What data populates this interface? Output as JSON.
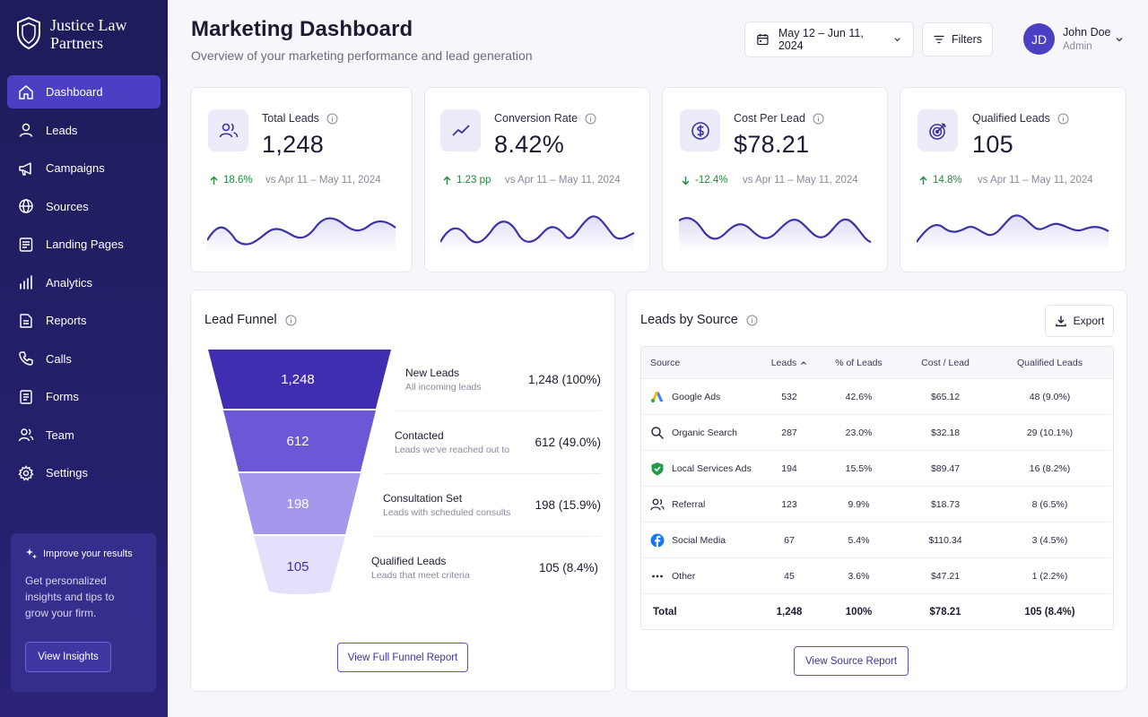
{
  "brand": {
    "name_line1": "Justice Law",
    "name_line2": "Partners"
  },
  "sidebar": {
    "items": [
      {
        "label": "Dashboard",
        "icon": "home-icon"
      },
      {
        "label": "Leads",
        "icon": "user-icon"
      },
      {
        "label": "Campaigns",
        "icon": "megaphone-icon"
      },
      {
        "label": "Sources",
        "icon": "globe-icon"
      },
      {
        "label": "Landing Pages",
        "icon": "page-icon"
      },
      {
        "label": "Analytics",
        "icon": "bar-chart-icon"
      },
      {
        "label": "Reports",
        "icon": "report-icon"
      },
      {
        "label": "Calls",
        "icon": "phone-icon"
      },
      {
        "label": "Forms",
        "icon": "form-icon"
      },
      {
        "label": "Team",
        "icon": "team-icon"
      },
      {
        "label": "Settings",
        "icon": "gear-icon"
      }
    ],
    "promo": {
      "title": "Improve your results",
      "text_line1": "Get personalized",
      "text_line2": "insights and tips to",
      "text_line3": "grow your firm.",
      "button": "View Insights"
    }
  },
  "header": {
    "title": "Marketing Dashboard",
    "subtitle": "Overview of your marketing performance and lead generation",
    "date_range": "May 12 – Jun 11, 2024",
    "filters": "Filters",
    "user": {
      "initials": "JD",
      "name": "John Doe",
      "role": "Admin"
    }
  },
  "kpis": [
    {
      "label": "Total Leads",
      "value": "1,248",
      "delta": "18.6%",
      "direction": "up",
      "compare": "vs Apr 11 – May 11, 2024",
      "icon": "users-icon"
    },
    {
      "label": "Conversion Rate",
      "value": "8.42%",
      "delta": "1.23 pp",
      "direction": "up",
      "compare": "vs Apr 11 – May 11, 2024",
      "icon": "trend-icon"
    },
    {
      "label": "Cost Per Lead",
      "value": "$78.21",
      "delta": "-12.4%",
      "direction": "down",
      "compare": "vs Apr 11 – May 11, 2024",
      "icon": "dollar-icon"
    },
    {
      "label": "Qualified Leads",
      "value": "105",
      "delta": "14.8%",
      "direction": "up",
      "compare": "vs Apr 11 – May 11, 2024",
      "icon": "target-icon"
    }
  ],
  "funnel": {
    "title": "Lead Funnel",
    "stages": [
      {
        "name": "New Leads",
        "desc": "All incoming leads",
        "count": "1,248",
        "value": "1,248 (100%)",
        "color": "#3f2fb0"
      },
      {
        "name": "Contacted",
        "desc": "Leads we've reached out to",
        "count": "612",
        "value": "612 (49.0%)",
        "color": "#6a58d6"
      },
      {
        "name": "Consultation Set",
        "desc": "Leads with scheduled consults",
        "count": "198",
        "value": "198 (15.9%)",
        "color": "#a597ec"
      },
      {
        "name": "Qualified Leads",
        "desc": "Leads that meet criteria",
        "count": "105",
        "value": "105 (8.4%)",
        "color": "#e4dffb"
      }
    ],
    "button": "View Full Funnel Report"
  },
  "sources": {
    "title": "Leads by Source",
    "export": "Export",
    "columns": [
      "Source",
      "Leads",
      "% of Leads",
      "Cost / Lead",
      "Qualified Leads"
    ],
    "rows": [
      {
        "source": "Google Ads",
        "icon": "google-ads-icon",
        "leads": "532",
        "pct": "42.6%",
        "cpl": "$65.12",
        "qualified": "48 (9.0%)"
      },
      {
        "source": "Organic Search",
        "icon": "search-icon",
        "leads": "287",
        "pct": "23.0%",
        "cpl": "$32.18",
        "qualified": "29 (10.1%)"
      },
      {
        "source": "Local Services Ads",
        "icon": "shield-check-icon",
        "leads": "194",
        "pct": "15.5%",
        "cpl": "$89.47",
        "qualified": "16 (8.2%)"
      },
      {
        "source": "Referral",
        "icon": "referral-icon",
        "leads": "123",
        "pct": "9.9%",
        "cpl": "$18.73",
        "qualified": "8 (6.5%)"
      },
      {
        "source": "Social Media",
        "icon": "facebook-icon",
        "leads": "67",
        "pct": "5.4%",
        "cpl": "$110.34",
        "qualified": "3 (4.5%)"
      },
      {
        "source": "Other",
        "icon": "more-icon",
        "leads": "45",
        "pct": "3.6%",
        "cpl": "$47.21",
        "qualified": "1 (2.2%)"
      }
    ],
    "total": {
      "label": "Total",
      "leads": "1,248",
      "pct": "100%",
      "cpl": "$78.21",
      "qualified": "105 (8.4%)"
    },
    "button": "View Source Report"
  },
  "colors": {
    "accent": "#4b3fc4",
    "sidebar": "#1e1c5a",
    "positive": "#1f8a3b"
  }
}
